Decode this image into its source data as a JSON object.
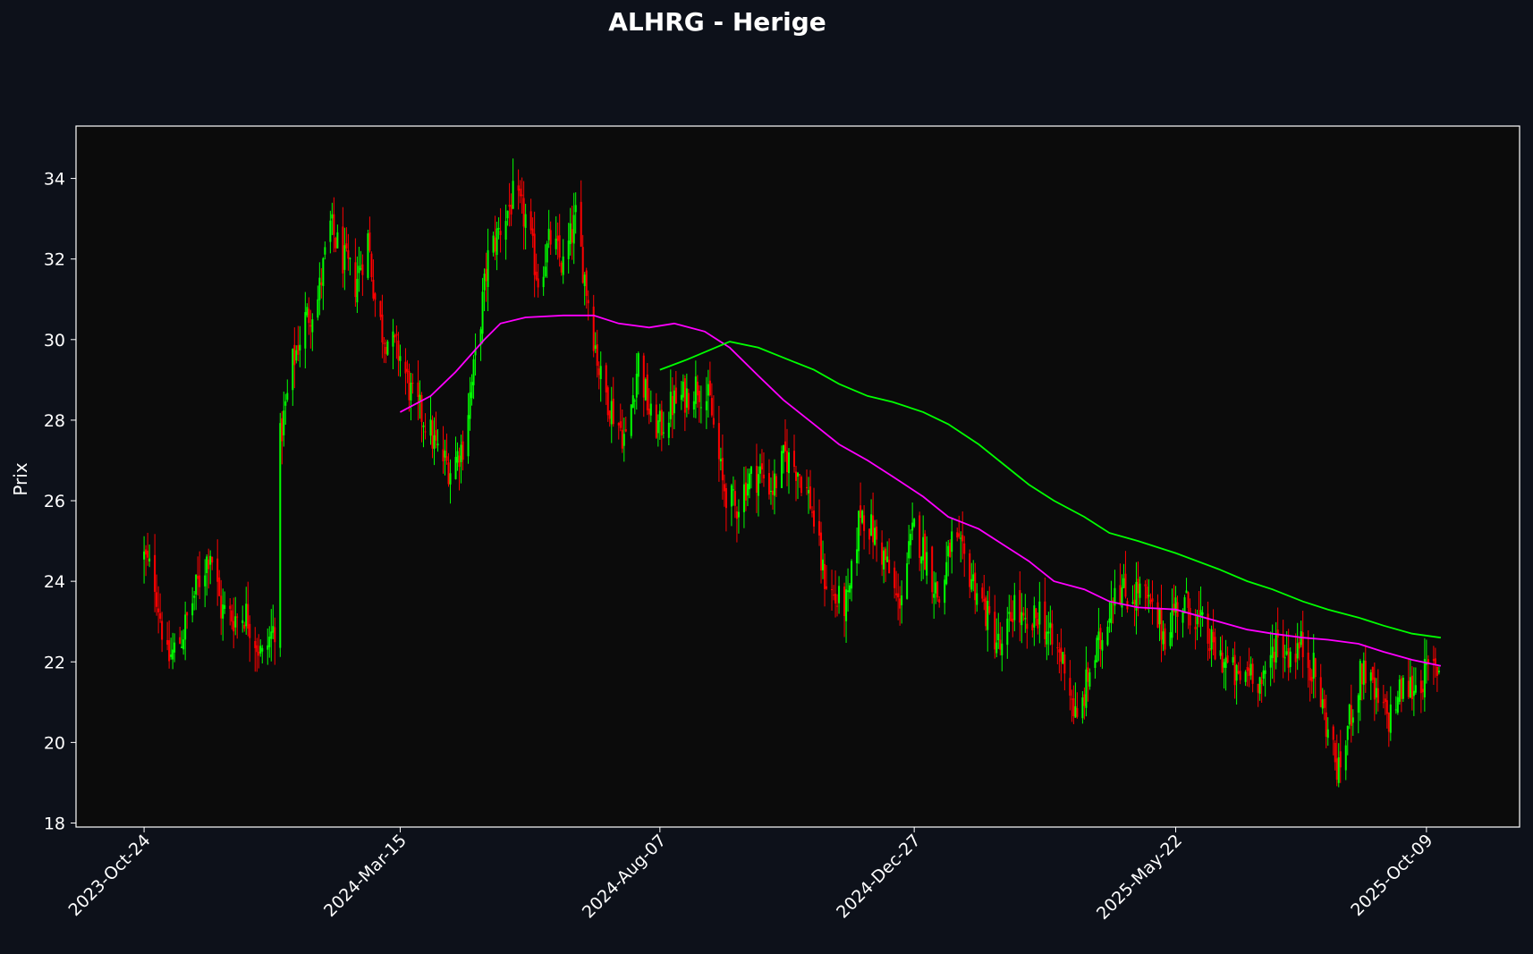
{
  "chart_data": {
    "type": "candlestick",
    "title": "ALHRG - Herige",
    "xlabel": "",
    "ylabel": "Prix",
    "x_ticks": [
      "2023-Oct-24",
      "2024-Mar-15",
      "2024-Aug-07",
      "2024-Dec-27",
      "2025-May-22",
      "2025-Oct-09"
    ],
    "y_ticks": [
      18,
      20,
      22,
      24,
      26,
      28,
      30,
      32,
      34
    ],
    "ylim": [
      17.9,
      35.3
    ],
    "xlim": [
      "2023-Sep-16",
      "2025-Nov-30"
    ],
    "grid": false,
    "legend": "none",
    "colors": {
      "background": "#0d111a",
      "plot_background": "#0b0b0b",
      "axes": "#ffffff",
      "up": "#00ff00",
      "down": "#ff0000",
      "ma_short": "#ff00ff",
      "ma_long": "#00ff00"
    },
    "price_path": [
      [
        "2023-Oct-24",
        24.6
      ],
      [
        "2023-Oct-30",
        24.0
      ],
      [
        "2023-Nov-06",
        22.0
      ],
      [
        "2023-Nov-14",
        22.6
      ],
      [
        "2023-Nov-22",
        23.8
      ],
      [
        "2023-Nov-30",
        24.8
      ],
      [
        "2023-Dec-06",
        23.3
      ],
      [
        "2023-Dec-13",
        23.1
      ],
      [
        "2023-Dec-20",
        23.2
      ],
      [
        "2023-Dec-29",
        22.1
      ],
      [
        "2024-Jan-05",
        22.9
      ],
      [
        "2024-Jan-08",
        27.5
      ],
      [
        "2024-Jan-15",
        29.4
      ],
      [
        "2024-Jan-22",
        30.5
      ],
      [
        "2024-Jan-29",
        31.0
      ],
      [
        "2024-Feb-05",
        32.8
      ],
      [
        "2024-Feb-12",
        32.0
      ],
      [
        "2024-Feb-19",
        31.4
      ],
      [
        "2024-Feb-26",
        32.5
      ],
      [
        "2024-Mar-01",
        31.0
      ],
      [
        "2024-Mar-05",
        30.2
      ],
      [
        "2024-Mar-15",
        29.6
      ],
      [
        "2024-Mar-22",
        28.5
      ],
      [
        "2024-Mar-29",
        28.0
      ],
      [
        "2024-Apr-05",
        27.2
      ],
      [
        "2024-Apr-12",
        26.8
      ],
      [
        "2024-Apr-19",
        27.4
      ],
      [
        "2024-Apr-26",
        29.5
      ],
      [
        "2024-May-03",
        32.0
      ],
      [
        "2024-May-10",
        32.8
      ],
      [
        "2024-May-17",
        33.5
      ],
      [
        "2024-May-24",
        33.0
      ],
      [
        "2024-May-31",
        31.5
      ],
      [
        "2024-Jun-07",
        32.5
      ],
      [
        "2024-Jun-14",
        31.8
      ],
      [
        "2024-Jun-21",
        33.0
      ],
      [
        "2024-Jun-28",
        31.0
      ],
      [
        "2024-Jul-05",
        29.0
      ],
      [
        "2024-Jul-12",
        28.2
      ],
      [
        "2024-Jul-19",
        27.5
      ],
      [
        "2024-Jul-26",
        29.5
      ],
      [
        "2024-Aug-02",
        28.0
      ],
      [
        "2024-Aug-07",
        27.8
      ],
      [
        "2024-Aug-14",
        28.4
      ],
      [
        "2024-Aug-21",
        28.6
      ],
      [
        "2024-Aug-28",
        28.9
      ],
      [
        "2024-Sep-04",
        28.4
      ],
      [
        "2024-Sep-11",
        26.4
      ],
      [
        "2024-Sep-18",
        25.8
      ],
      [
        "2024-Sep-25",
        26.5
      ],
      [
        "2024-Oct-02",
        26.7
      ],
      [
        "2024-Oct-09",
        26.3
      ],
      [
        "2024-Oct-16",
        27.1
      ],
      [
        "2024-Oct-23",
        26.8
      ],
      [
        "2024-Oct-30",
        26.0
      ],
      [
        "2024-Nov-06",
        24.2
      ],
      [
        "2024-Nov-13",
        23.5
      ],
      [
        "2024-Nov-20",
        23.4
      ],
      [
        "2024-Nov-27",
        25.8
      ],
      [
        "2024-Dec-04",
        25.2
      ],
      [
        "2024-Dec-11",
        24.5
      ],
      [
        "2024-Dec-18",
        23.4
      ],
      [
        "2024-Dec-27",
        25.3
      ],
      [
        "2025-Jan-03",
        24.6
      ],
      [
        "2025-Jan-10",
        23.5
      ],
      [
        "2025-Jan-17",
        25.0
      ],
      [
        "2025-Jan-24",
        24.5
      ],
      [
        "2025-Jan-31",
        23.8
      ],
      [
        "2025-Feb-07",
        23.0
      ],
      [
        "2025-Feb-14",
        22.2
      ],
      [
        "2025-Feb-21",
        23.5
      ],
      [
        "2025-Feb-28",
        22.6
      ],
      [
        "2025-Mar-07",
        23.3
      ],
      [
        "2025-Mar-14",
        22.4
      ],
      [
        "2025-Mar-21",
        22.0
      ],
      [
        "2025-Mar-28",
        20.4
      ],
      [
        "2025-Apr-04",
        21.8
      ],
      [
        "2025-Apr-11",
        22.6
      ],
      [
        "2025-Apr-18",
        24.0
      ],
      [
        "2025-Apr-25",
        23.6
      ],
      [
        "2025-May-02",
        23.8
      ],
      [
        "2025-May-09",
        23.2
      ],
      [
        "2025-May-16",
        22.7
      ],
      [
        "2025-May-22",
        23.4
      ],
      [
        "2025-May-29",
        23.4
      ],
      [
        "2025-Jun-05",
        22.9
      ],
      [
        "2025-Jun-12",
        22.3
      ],
      [
        "2025-Jun-19",
        22.0
      ],
      [
        "2025-Jun-26",
        21.5
      ],
      [
        "2025-Jul-03",
        21.9
      ],
      [
        "2025-Jul-10",
        21.4
      ],
      [
        "2025-Jul-17",
        22.6
      ],
      [
        "2025-Jul-24",
        22.2
      ],
      [
        "2025-Jul-31",
        22.4
      ],
      [
        "2025-Aug-07",
        21.8
      ],
      [
        "2025-Aug-14",
        20.5
      ],
      [
        "2025-Aug-21",
        19.2
      ],
      [
        "2025-Aug-28",
        20.8
      ],
      [
        "2025-Sep-04",
        21.9
      ],
      [
        "2025-Sep-11",
        21.0
      ],
      [
        "2025-Sep-18",
        20.6
      ],
      [
        "2025-Sep-25",
        21.3
      ],
      [
        "2025-Oct-02",
        21.4
      ],
      [
        "2025-Oct-09",
        21.7
      ],
      [
        "2025-Oct-17",
        21.9
      ]
    ],
    "ma_short": [
      [
        "2024-Mar-15",
        28.2
      ],
      [
        "2024-Apr-01",
        28.6
      ],
      [
        "2024-Apr-15",
        29.2
      ],
      [
        "2024-May-01",
        30.0
      ],
      [
        "2024-May-10",
        30.4
      ],
      [
        "2024-May-24",
        30.55
      ],
      [
        "2024-Jun-14",
        30.6
      ],
      [
        "2024-Jul-01",
        30.6
      ],
      [
        "2024-Jul-15",
        30.4
      ],
      [
        "2024-Aug-01",
        30.3
      ],
      [
        "2024-Aug-15",
        30.4
      ],
      [
        "2024-Sep-01",
        30.2
      ],
      [
        "2024-Sep-15",
        29.8
      ],
      [
        "2024-Oct-01",
        29.1
      ],
      [
        "2024-Oct-15",
        28.5
      ],
      [
        "2024-Nov-01",
        27.9
      ],
      [
        "2024-Nov-15",
        27.4
      ],
      [
        "2024-Dec-01",
        27.0
      ],
      [
        "2024-Dec-15",
        26.6
      ],
      [
        "2025-Jan-01",
        26.1
      ],
      [
        "2025-Jan-15",
        25.6
      ],
      [
        "2025-Feb-01",
        25.3
      ],
      [
        "2025-Feb-15",
        24.9
      ],
      [
        "2025-Mar-01",
        24.5
      ],
      [
        "2025-Mar-15",
        24.0
      ],
      [
        "2025-Apr-01",
        23.8
      ],
      [
        "2025-Apr-15",
        23.5
      ],
      [
        "2025-May-01",
        23.35
      ],
      [
        "2025-May-22",
        23.3
      ],
      [
        "2025-Jun-15",
        23.0
      ],
      [
        "2025-Jul-01",
        22.8
      ],
      [
        "2025-Jul-15",
        22.7
      ],
      [
        "2025-Aug-01",
        22.6
      ],
      [
        "2025-Aug-15",
        22.55
      ],
      [
        "2025-Sep-01",
        22.45
      ],
      [
        "2025-Sep-15",
        22.25
      ],
      [
        "2025-Oct-01",
        22.05
      ],
      [
        "2025-Oct-17",
        21.9
      ]
    ],
    "ma_long": [
      [
        "2024-Aug-07",
        29.25
      ],
      [
        "2024-Aug-22",
        29.5
      ],
      [
        "2024-Sep-07",
        29.8
      ],
      [
        "2024-Sep-15",
        29.95
      ],
      [
        "2024-Oct-01",
        29.8
      ],
      [
        "2024-Oct-15",
        29.55
      ],
      [
        "2024-Nov-01",
        29.25
      ],
      [
        "2024-Nov-15",
        28.9
      ],
      [
        "2024-Dec-01",
        28.6
      ],
      [
        "2024-Dec-15",
        28.45
      ],
      [
        "2025-Jan-01",
        28.2
      ],
      [
        "2025-Jan-15",
        27.9
      ],
      [
        "2025-Feb-01",
        27.4
      ],
      [
        "2025-Feb-15",
        26.9
      ],
      [
        "2025-Mar-01",
        26.4
      ],
      [
        "2025-Mar-15",
        26.0
      ],
      [
        "2025-Apr-01",
        25.6
      ],
      [
        "2025-Apr-15",
        25.2
      ],
      [
        "2025-May-01",
        25.0
      ],
      [
        "2025-May-22",
        24.7
      ],
      [
        "2025-Jun-15",
        24.3
      ],
      [
        "2025-Jul-01",
        24.0
      ],
      [
        "2025-Jul-15",
        23.8
      ],
      [
        "2025-Aug-01",
        23.5
      ],
      [
        "2025-Aug-15",
        23.3
      ],
      [
        "2025-Sep-01",
        23.1
      ],
      [
        "2025-Sep-15",
        22.9
      ],
      [
        "2025-Oct-01",
        22.7
      ],
      [
        "2025-Oct-17",
        22.6
      ]
    ]
  }
}
